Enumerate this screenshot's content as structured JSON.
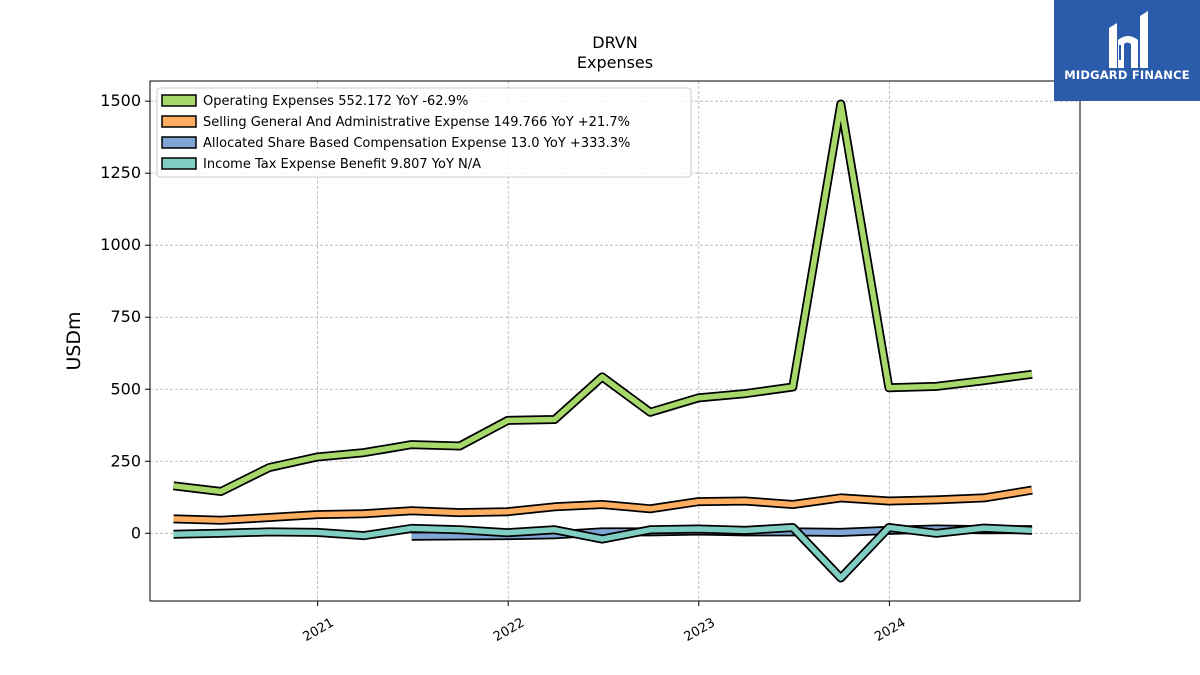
{
  "chart_data": {
    "type": "line",
    "title": "DRVN",
    "subtitle": "Expenses",
    "ylabel": "USDm",
    "xlabel": "",
    "ylim": [
      -235,
      1570
    ],
    "xlim": [
      "2020-02-15",
      "2024-12-31"
    ],
    "yticks": [
      0,
      250,
      500,
      750,
      1000,
      1250,
      1500
    ],
    "ytick_labels": [
      "0",
      "250",
      "500",
      "750",
      "1000",
      "1250",
      "1500"
    ],
    "xticks": [
      "2021-01-01",
      "2022-01-01",
      "2023-01-01",
      "2024-01-01"
    ],
    "xtick_labels": [
      "2021",
      "2022",
      "2023",
      "2024"
    ],
    "grid": true,
    "legend_position": "top-left",
    "series": [
      {
        "name": "Operating Expenses",
        "legend": "Operating Expenses  552.172 YoY -62.9%",
        "color": "#a6d96a",
        "x": [
          "2020-03-31",
          "2020-06-30",
          "2020-09-30",
          "2020-12-31",
          "2021-03-31",
          "2021-06-30",
          "2021-09-30",
          "2021-12-31",
          "2022-03-31",
          "2022-06-30",
          "2022-09-30",
          "2022-12-31",
          "2023-03-31",
          "2023-06-30",
          "2023-09-30",
          "2023-12-31",
          "2024-03-31",
          "2024-06-30",
          "2024-09-30"
        ],
        "values": [
          165,
          145,
          228,
          265,
          280,
          308,
          303,
          392,
          395,
          543,
          420,
          470,
          485,
          508,
          1490,
          505,
          510,
          530,
          552
        ]
      },
      {
        "name": "Selling General And Administrative Expense",
        "legend": "Selling General And Administrative Expense  149.766 YoY +21.7%",
        "color": "#fdae61",
        "x": [
          "2020-03-31",
          "2020-06-30",
          "2020-09-30",
          "2020-12-31",
          "2021-03-31",
          "2021-06-30",
          "2021-09-30",
          "2021-12-31",
          "2022-03-31",
          "2022-06-30",
          "2022-09-30",
          "2022-12-31",
          "2023-03-31",
          "2023-06-30",
          "2023-09-30",
          "2023-12-31",
          "2024-03-31",
          "2024-06-30",
          "2024-09-30"
        ],
        "values": [
          50,
          45,
          55,
          65,
          68,
          78,
          72,
          75,
          92,
          100,
          85,
          110,
          112,
          100,
          123,
          112,
          116,
          123,
          150
        ]
      },
      {
        "name": "Allocated Share Based Compensation Expense",
        "legend": "Allocated Share Based Compensation Expense  13.0 YoY +333.3%",
        "color": "#7fa6d4",
        "x": [
          "2021-06-30",
          "2021-09-30",
          "2021-12-31",
          "2022-03-31",
          "2022-06-30",
          "2022-09-30",
          "2022-12-31",
          "2023-03-31",
          "2023-06-30",
          "2023-09-30",
          "2023-12-31",
          "2024-03-31",
          "2024-06-30",
          "2024-09-30"
        ],
        "values": [
          -10,
          -9,
          -8,
          -5,
          5,
          5,
          8,
          5,
          5,
          3,
          10,
          15,
          12,
          13
        ]
      },
      {
        "name": "Income Tax Expense Benefit",
        "legend": "Income Tax Expense Benefit  9.807 YoY N/A",
        "color": "#80cdc1",
        "x": [
          "2020-03-31",
          "2020-06-30",
          "2020-09-30",
          "2020-12-31",
          "2021-03-31",
          "2021-06-30",
          "2021-09-30",
          "2021-12-31",
          "2022-03-31",
          "2022-06-30",
          "2022-09-30",
          "2022-12-31",
          "2023-03-31",
          "2023-06-30",
          "2023-09-30",
          "2023-12-31",
          "2024-03-31",
          "2024-06-30",
          "2024-09-30"
        ],
        "values": [
          -3,
          0,
          5,
          3,
          -8,
          17,
          12,
          2,
          12,
          -20,
          12,
          15,
          10,
          20,
          -155,
          20,
          0,
          18,
          10
        ]
      }
    ]
  },
  "logo": {
    "text": "MIDGARD FINANCE",
    "color": "#2b5bab"
  }
}
